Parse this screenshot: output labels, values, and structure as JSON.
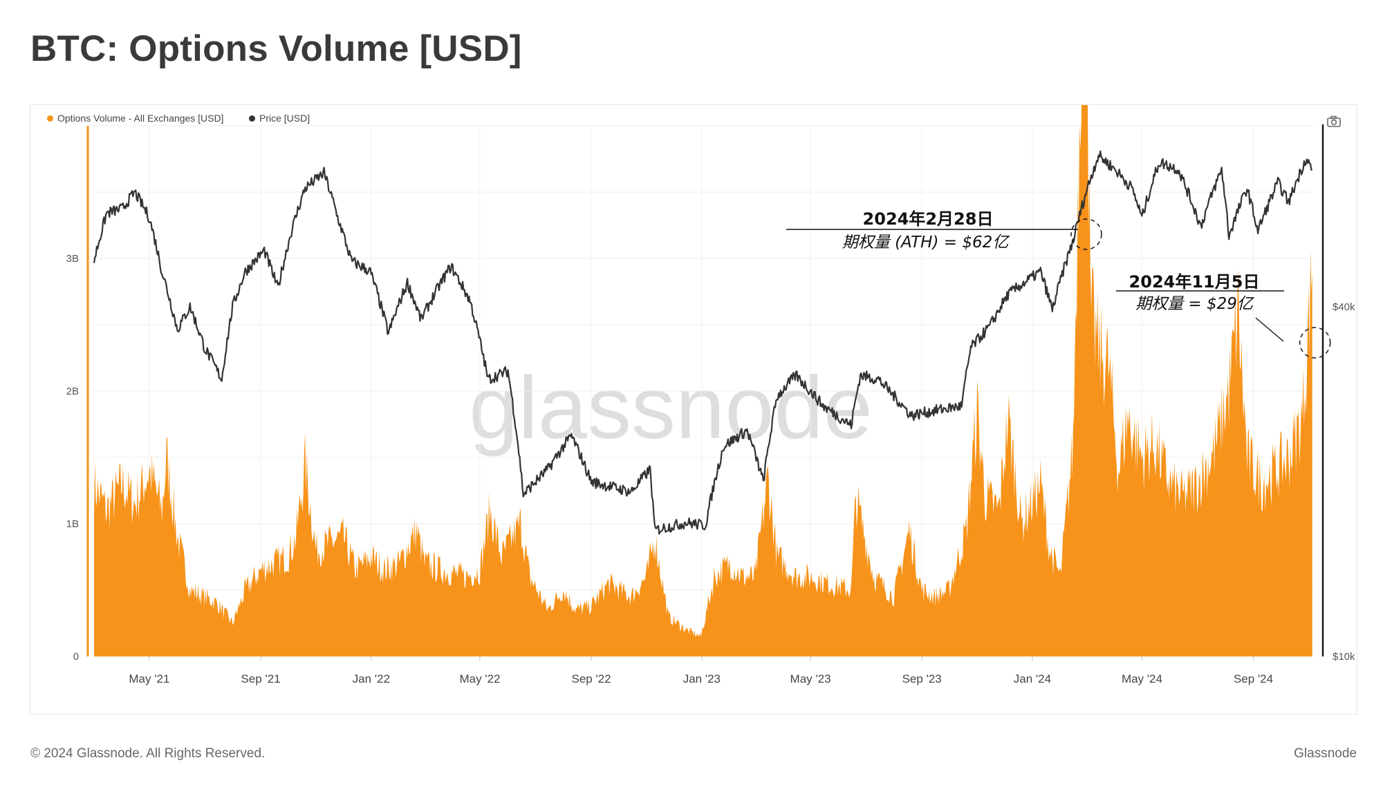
{
  "page": {
    "title": "BTC: Options Volume [USD]",
    "copyright": "© 2024 Glassnode. All Rights Reserved.",
    "brand": "Glassnode",
    "watermark": "glassnode",
    "camera_icon": "camera-icon"
  },
  "legend": [
    {
      "label": "Options Volume - All Exchanges [USD]",
      "color": "#f7931a"
    },
    {
      "label": "Price [USD]",
      "color": "#333333"
    }
  ],
  "chart_data": {
    "type": "area",
    "x_ticks": [
      "May '21",
      "Sep '21",
      "Jan '22",
      "May '22",
      "Sep '22",
      "Jan '23",
      "May '23",
      "Sep '23",
      "Jan '24",
      "May '24",
      "Sep '24"
    ],
    "x_tick_dates": [
      "2021-05-01",
      "2021-09-01",
      "2022-01-01",
      "2022-05-01",
      "2022-09-01",
      "2023-01-01",
      "2023-05-01",
      "2023-09-01",
      "2024-01-01",
      "2024-05-01",
      "2024-09-01"
    ],
    "x_range": [
      "2021-03-01",
      "2024-11-06"
    ],
    "y_left": {
      "ticks": [
        "0",
        "1B",
        "2B",
        "3B"
      ],
      "tick_values": [
        0,
        1000000000,
        2000000000,
        3000000000
      ],
      "range": [
        0,
        4000000000
      ]
    },
    "y_right": {
      "scale": "log",
      "ticks": [
        "$10k",
        "$40k"
      ],
      "tick_values": [
        10000,
        40000
      ]
    },
    "grid": true,
    "series": [
      {
        "name": "Options Volume - All Exchanges [USD]",
        "color": "#f7931a",
        "axis": "left",
        "style": "area",
        "points": [
          [
            "2021-03-01",
            1300000000.0
          ],
          [
            "2021-03-15",
            1100000000.0
          ],
          [
            "2021-04-01",
            1300000000.0
          ],
          [
            "2021-04-15",
            1150000000.0
          ],
          [
            "2021-05-01",
            1400000000.0
          ],
          [
            "2021-05-15",
            1100000000.0
          ],
          [
            "2021-05-20",
            1500000000.0
          ],
          [
            "2021-06-01",
            900000000.0
          ],
          [
            "2021-06-15",
            500000000.0
          ],
          [
            "2021-07-01",
            450000000.0
          ],
          [
            "2021-07-15",
            400000000.0
          ],
          [
            "2021-08-01",
            250000000.0
          ],
          [
            "2021-08-15",
            500000000.0
          ],
          [
            "2021-09-01",
            650000000.0
          ],
          [
            "2021-09-15",
            700000000.0
          ],
          [
            "2021-10-01",
            750000000.0
          ],
          [
            "2021-10-10",
            900000000.0
          ],
          [
            "2021-10-20",
            1450000000.0
          ],
          [
            "2021-11-01",
            800000000.0
          ],
          [
            "2021-11-15",
            850000000.0
          ],
          [
            "2021-12-01",
            900000000.0
          ],
          [
            "2021-12-15",
            650000000.0
          ],
          [
            "2022-01-01",
            750000000.0
          ],
          [
            "2022-01-15",
            650000000.0
          ],
          [
            "2022-02-01",
            700000000.0
          ],
          [
            "2022-02-20",
            950000000.0
          ],
          [
            "2022-03-01",
            700000000.0
          ],
          [
            "2022-03-20",
            650000000.0
          ],
          [
            "2022-04-15",
            600000000.0
          ],
          [
            "2022-05-01",
            650000000.0
          ],
          [
            "2022-05-12",
            1100000000.0
          ],
          [
            "2022-05-25",
            750000000.0
          ],
          [
            "2022-06-15",
            1000000000.0
          ],
          [
            "2022-06-25",
            600000000.0
          ],
          [
            "2022-07-15",
            350000000.0
          ],
          [
            "2022-08-01",
            500000000.0
          ],
          [
            "2022-08-15",
            350000000.0
          ],
          [
            "2022-09-01",
            380000000.0
          ],
          [
            "2022-09-20",
            550000000.0
          ],
          [
            "2022-10-15",
            450000000.0
          ],
          [
            "2022-11-01",
            600000000.0
          ],
          [
            "2022-11-10",
            900000000.0
          ],
          [
            "2022-11-25",
            300000000.0
          ],
          [
            "2022-12-15",
            200000000.0
          ],
          [
            "2022-12-31",
            150000000.0
          ],
          [
            "2023-01-15",
            600000000.0
          ],
          [
            "2023-02-01",
            700000000.0
          ],
          [
            "2023-02-15",
            600000000.0
          ],
          [
            "2023-03-01",
            600000000.0
          ],
          [
            "2023-03-15",
            1350000000.0
          ],
          [
            "2023-03-25",
            750000000.0
          ],
          [
            "2023-04-15",
            600000000.0
          ],
          [
            "2023-05-01",
            600000000.0
          ],
          [
            "2023-05-20",
            550000000.0
          ],
          [
            "2023-06-15",
            500000000.0
          ],
          [
            "2023-06-20",
            1200000000.0
          ],
          [
            "2023-07-10",
            600000000.0
          ],
          [
            "2023-08-01",
            450000000.0
          ],
          [
            "2023-08-18",
            950000000.0
          ],
          [
            "2023-09-01",
            500000000.0
          ],
          [
            "2023-09-15",
            450000000.0
          ],
          [
            "2023-10-01",
            500000000.0
          ],
          [
            "2023-10-20",
            950000000.0
          ],
          [
            "2023-11-01",
            1850000000.0
          ],
          [
            "2023-11-10",
            1200000000.0
          ],
          [
            "2023-11-25",
            1100000000.0
          ],
          [
            "2023-12-05",
            1800000000.0
          ],
          [
            "2023-12-20",
            1000000000.0
          ],
          [
            "2024-01-10",
            1300000000.0
          ],
          [
            "2024-01-20",
            800000000.0
          ],
          [
            "2024-02-01",
            600000000.0
          ],
          [
            "2024-02-15",
            1600000000.0
          ],
          [
            "2024-02-28",
            6200000000.0
          ],
          [
            "2024-03-05",
            2600000000.0
          ],
          [
            "2024-03-15",
            2300000000.0
          ],
          [
            "2024-03-25",
            2200000000.0
          ],
          [
            "2024-04-05",
            1400000000.0
          ],
          [
            "2024-04-15",
            1800000000.0
          ],
          [
            "2024-05-01",
            1500000000.0
          ],
          [
            "2024-05-15",
            1600000000.0
          ],
          [
            "2024-06-01",
            1300000000.0
          ],
          [
            "2024-06-15",
            1200000000.0
          ],
          [
            "2024-07-01",
            1300000000.0
          ],
          [
            "2024-07-20",
            1550000000.0
          ],
          [
            "2024-08-05",
            2000000000.0
          ],
          [
            "2024-08-15",
            2600000000.0
          ],
          [
            "2024-08-25",
            1500000000.0
          ],
          [
            "2024-09-10",
            1300000000.0
          ],
          [
            "2024-09-25",
            1400000000.0
          ],
          [
            "2024-10-10",
            1500000000.0
          ],
          [
            "2024-10-25",
            1800000000.0
          ],
          [
            "2024-11-05",
            2900000000.0
          ]
        ]
      },
      {
        "name": "Price [USD]",
        "color": "#333333",
        "axis": "right",
        "style": "line",
        "points": [
          [
            "2021-03-01",
            48000
          ],
          [
            "2021-03-15",
            58000
          ],
          [
            "2021-04-01",
            59000
          ],
          [
            "2021-04-15",
            63000
          ],
          [
            "2021-05-01",
            57000
          ],
          [
            "2021-05-15",
            46000
          ],
          [
            "2021-06-01",
            36500
          ],
          [
            "2021-06-15",
            40000
          ],
          [
            "2021-07-01",
            34000
          ],
          [
            "2021-07-20",
            30000
          ],
          [
            "2021-08-01",
            40000
          ],
          [
            "2021-08-15",
            46000
          ],
          [
            "2021-09-05",
            50000
          ],
          [
            "2021-09-20",
            43000
          ],
          [
            "2021-10-05",
            54000
          ],
          [
            "2021-10-20",
            64000
          ],
          [
            "2021-11-10",
            68000
          ],
          [
            "2021-11-25",
            57000
          ],
          [
            "2021-12-10",
            48000
          ],
          [
            "2021-12-31",
            46000
          ],
          [
            "2022-01-20",
            36000
          ],
          [
            "2022-02-10",
            44000
          ],
          [
            "2022-02-25",
            38000
          ],
          [
            "2022-03-30",
            47000
          ],
          [
            "2022-04-20",
            41000
          ],
          [
            "2022-05-10",
            30000
          ],
          [
            "2022-06-01",
            31000
          ],
          [
            "2022-06-18",
            19000
          ],
          [
            "2022-07-15",
            21000
          ],
          [
            "2022-08-10",
            24000
          ],
          [
            "2022-09-01",
            20000
          ],
          [
            "2022-10-15",
            19200
          ],
          [
            "2022-11-05",
            21000
          ],
          [
            "2022-11-10",
            16500
          ],
          [
            "2022-12-15",
            17000
          ],
          [
            "2023-01-05",
            16800
          ],
          [
            "2023-01-25",
            23000
          ],
          [
            "2023-02-20",
            24500
          ],
          [
            "2023-03-10",
            20000
          ],
          [
            "2023-03-25",
            28000
          ],
          [
            "2023-04-15",
            30500
          ],
          [
            "2023-05-15",
            27000
          ],
          [
            "2023-06-15",
            25000
          ],
          [
            "2023-06-25",
            30500
          ],
          [
            "2023-07-15",
            30000
          ],
          [
            "2023-08-20",
            26000
          ],
          [
            "2023-09-15",
            26500
          ],
          [
            "2023-10-15",
            27000
          ],
          [
            "2023-10-25",
            34000
          ],
          [
            "2023-11-15",
            37000
          ],
          [
            "2023-12-05",
            42000
          ],
          [
            "2024-01-10",
            46000
          ],
          [
            "2024-01-23",
            39500
          ],
          [
            "2024-02-15",
            52000
          ],
          [
            "2024-02-28",
            62000
          ],
          [
            "2024-03-14",
            73000
          ],
          [
            "2024-04-01",
            69000
          ],
          [
            "2024-04-20",
            64000
          ],
          [
            "2024-05-01",
            57000
          ],
          [
            "2024-05-20",
            71000
          ],
          [
            "2024-06-10",
            69000
          ],
          [
            "2024-07-05",
            55000
          ],
          [
            "2024-07-28",
            69000
          ],
          [
            "2024-08-05",
            53000
          ],
          [
            "2024-08-25",
            64000
          ],
          [
            "2024-09-06",
            54000
          ],
          [
            "2024-09-28",
            65500
          ],
          [
            "2024-10-10",
            60500
          ],
          [
            "2024-10-29",
            72000
          ],
          [
            "2024-11-05",
            69000
          ]
        ]
      }
    ],
    "annotations": [
      {
        "date_label": "2024年2月28日",
        "value_label": "期权量 (ATH) = $62亿",
        "x": "2024-02-28"
      },
      {
        "date_label": "2024年11月5日",
        "value_label": "期权量 = $29亿",
        "x": "2024-11-05"
      }
    ]
  }
}
